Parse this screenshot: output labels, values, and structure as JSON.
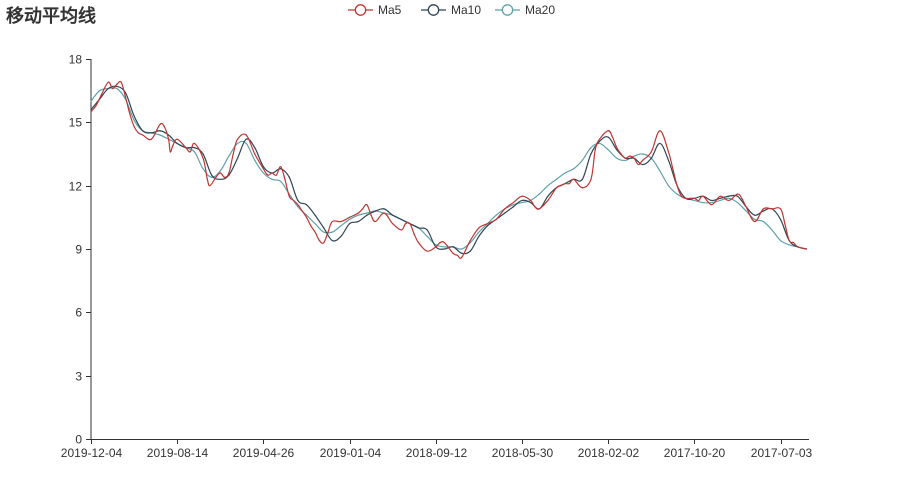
{
  "chart_title": "移动平均线",
  "chart_data": {
    "type": "line",
    "title": "移动平均线",
    "xlabel": "",
    "ylabel": "",
    "ylim": [
      0,
      18
    ],
    "y_ticks": [
      0,
      3,
      6,
      9,
      12,
      15,
      18
    ],
    "x_tick_labels": [
      "2019-12-04",
      "2019-08-14",
      "2019-04-26",
      "2019-01-04",
      "2018-09-12",
      "2018-05-30",
      "2018-02-02",
      "2017-10-20",
      "2017-07-03"
    ],
    "x_tick_positions": [
      0,
      1,
      2,
      3,
      4,
      5,
      6,
      7,
      8
    ],
    "x_range": [
      0,
      8.33
    ],
    "legend_position": "top-center",
    "grid": false,
    "series": [
      {
        "name": "Ma5",
        "color": "#c23531",
        "x": [
          0,
          0.06,
          0.12,
          0.2,
          0.25,
          0.3,
          0.35,
          0.4,
          0.45,
          0.5,
          0.55,
          0.6,
          0.7,
          0.8,
          0.85,
          0.9,
          0.92,
          0.95,
          1.0,
          1.1,
          1.15,
          1.2,
          1.3,
          1.35,
          1.38,
          1.45,
          1.5,
          1.55,
          1.6,
          1.65,
          1.7,
          1.8,
          1.9,
          2.0,
          2.05,
          2.1,
          2.15,
          2.2,
          2.25,
          2.3,
          2.35,
          2.4,
          2.45,
          2.5,
          2.55,
          2.6,
          2.65,
          2.7,
          2.75,
          2.8,
          2.9,
          3.0,
          3.1,
          3.15,
          3.2,
          3.25,
          3.3,
          3.4,
          3.5,
          3.6,
          3.65,
          3.7,
          3.75,
          3.8,
          3.9,
          4.0,
          4.05,
          4.1,
          4.2,
          4.25,
          4.3,
          4.4,
          4.5,
          4.6,
          4.7,
          4.8,
          4.9,
          5.0,
          5.1,
          5.15,
          5.2,
          5.3,
          5.4,
          5.45,
          5.5,
          5.55,
          5.6,
          5.7,
          5.8,
          5.85,
          5.9,
          6.0,
          6.05,
          6.1,
          6.15,
          6.2,
          6.25,
          6.3,
          6.35,
          6.4,
          6.5,
          6.6,
          6.7,
          6.75,
          6.8,
          6.85,
          6.9,
          6.95,
          7.0,
          7.05,
          7.1,
          7.2,
          7.3,
          7.4,
          7.5,
          7.55,
          7.6,
          7.7,
          7.8,
          7.9,
          8.0,
          8.05,
          8.1,
          8.15,
          8.2,
          8.3
        ],
        "y": [
          15.5,
          15.8,
          16.3,
          16.9,
          16.6,
          16.8,
          16.9,
          16.2,
          15.4,
          14.8,
          14.5,
          14.4,
          14.2,
          14.9,
          14.8,
          14.2,
          13.6,
          13.9,
          14.2,
          13.8,
          13.6,
          14.0,
          13.3,
          12.3,
          12.0,
          12.4,
          12.6,
          12.4,
          12.6,
          13.5,
          14.2,
          14.4,
          13.5,
          12.8,
          12.5,
          12.6,
          12.5,
          12.9,
          12.3,
          11.5,
          11.3,
          11.1,
          10.8,
          10.5,
          10.1,
          9.8,
          9.4,
          9.3,
          9.8,
          10.3,
          10.3,
          10.5,
          10.7,
          10.9,
          11.1,
          10.6,
          10.3,
          10.7,
          10.2,
          9.9,
          10.2,
          10.2,
          9.7,
          9.3,
          8.9,
          9.1,
          9.3,
          9.3,
          8.8,
          8.7,
          8.6,
          9.4,
          10.0,
          10.2,
          10.4,
          10.9,
          11.2,
          11.5,
          11.3,
          11.0,
          10.9,
          11.3,
          11.9,
          12.0,
          12.1,
          12.1,
          12.3,
          11.9,
          12.3,
          13.7,
          14.2,
          14.6,
          14.3,
          13.8,
          13.5,
          13.3,
          13.4,
          13.3,
          13.0,
          13.2,
          13.6,
          14.6,
          13.6,
          12.8,
          12.0,
          11.5,
          11.4,
          11.4,
          11.4,
          11.3,
          11.5,
          11.1,
          11.5,
          11.3,
          11.6,
          11.4,
          11.0,
          10.3,
          10.9,
          10.9,
          10.9,
          10.2,
          9.4,
          9.3,
          9.1,
          9.0
        ]
      },
      {
        "name": "Ma10",
        "color": "#2f4554",
        "x": [
          0,
          0.1,
          0.2,
          0.3,
          0.4,
          0.5,
          0.6,
          0.7,
          0.8,
          0.9,
          1.0,
          1.1,
          1.2,
          1.3,
          1.4,
          1.5,
          1.6,
          1.7,
          1.8,
          1.9,
          2.0,
          2.1,
          2.2,
          2.3,
          2.4,
          2.5,
          2.6,
          2.7,
          2.8,
          2.9,
          3.0,
          3.1,
          3.2,
          3.3,
          3.4,
          3.5,
          3.6,
          3.7,
          3.8,
          3.9,
          4.0,
          4.1,
          4.2,
          4.3,
          4.4,
          4.5,
          4.6,
          4.7,
          4.8,
          4.9,
          5.0,
          5.1,
          5.2,
          5.3,
          5.4,
          5.5,
          5.6,
          5.7,
          5.8,
          5.9,
          6.0,
          6.1,
          6.2,
          6.3,
          6.4,
          6.5,
          6.6,
          6.7,
          6.8,
          6.9,
          7.0,
          7.1,
          7.2,
          7.3,
          7.4,
          7.5,
          7.6,
          7.7,
          7.8,
          7.9,
          8.0,
          8.1,
          8.2,
          8.3
        ],
        "y": [
          15.6,
          16.1,
          16.6,
          16.7,
          16.4,
          15.3,
          14.6,
          14.5,
          14.6,
          14.4,
          14.0,
          13.8,
          13.8,
          13.5,
          12.5,
          12.3,
          12.5,
          13.3,
          14.2,
          13.8,
          12.9,
          12.6,
          12.8,
          12.4,
          11.3,
          11.1,
          10.6,
          10.0,
          9.4,
          9.6,
          10.2,
          10.3,
          10.6,
          10.8,
          10.9,
          10.6,
          10.4,
          10.2,
          10.0,
          9.9,
          9.1,
          9.0,
          9.1,
          8.8,
          8.9,
          9.6,
          10.1,
          10.4,
          10.7,
          11.0,
          11.3,
          11.2,
          10.9,
          11.5,
          11.9,
          12.1,
          12.3,
          12.3,
          13.5,
          14.1,
          14.3,
          13.7,
          13.3,
          13.3,
          13.0,
          13.3,
          14.0,
          13.2,
          12.0,
          11.4,
          11.4,
          11.5,
          11.3,
          11.4,
          11.5,
          11.5,
          11.0,
          10.6,
          10.8,
          10.9,
          10.4,
          9.4,
          9.1,
          9.0
        ]
      },
      {
        "name": "Ma20",
        "color": "#61a0a8",
        "x": [
          0,
          0.1,
          0.2,
          0.3,
          0.4,
          0.5,
          0.6,
          0.7,
          0.8,
          0.9,
          1.0,
          1.1,
          1.2,
          1.3,
          1.4,
          1.5,
          1.6,
          1.7,
          1.8,
          1.9,
          2.0,
          2.1,
          2.2,
          2.3,
          2.4,
          2.5,
          2.6,
          2.7,
          2.8,
          2.9,
          3.0,
          3.1,
          3.2,
          3.3,
          3.4,
          3.5,
          3.6,
          3.7,
          3.8,
          3.9,
          4.0,
          4.1,
          4.2,
          4.3,
          4.4,
          4.5,
          4.6,
          4.7,
          4.8,
          4.9,
          5.0,
          5.1,
          5.2,
          5.3,
          5.4,
          5.5,
          5.6,
          5.7,
          5.8,
          5.9,
          6.0,
          6.1,
          6.2,
          6.3,
          6.4,
          6.5,
          6.6,
          6.7,
          6.8,
          6.9,
          7.0,
          7.1,
          7.2,
          7.3,
          7.4,
          7.5,
          7.6,
          7.7,
          7.8,
          7.9,
          8.0,
          8.1,
          8.2,
          8.3
        ],
        "y": [
          16.0,
          16.5,
          16.6,
          16.6,
          16.1,
          15.1,
          14.6,
          14.5,
          14.4,
          14.2,
          14.0,
          13.8,
          13.6,
          12.8,
          12.4,
          12.7,
          13.4,
          14.0,
          14.0,
          13.2,
          12.6,
          12.3,
          12.2,
          11.6,
          11.0,
          10.6,
          10.2,
          9.8,
          9.8,
          10.1,
          10.4,
          10.6,
          10.7,
          10.8,
          10.7,
          10.6,
          10.4,
          10.2,
          10.0,
          9.6,
          9.2,
          9.1,
          9.1,
          9.0,
          9.3,
          9.8,
          10.2,
          10.6,
          10.9,
          11.1,
          11.2,
          11.3,
          11.6,
          12.0,
          12.3,
          12.6,
          12.8,
          13.2,
          13.8,
          14.0,
          13.7,
          13.3,
          13.2,
          13.4,
          13.5,
          13.3,
          12.7,
          12.0,
          11.6,
          11.4,
          11.3,
          11.2,
          11.2,
          11.3,
          11.4,
          11.2,
          10.8,
          10.4,
          10.3,
          9.9,
          9.4,
          9.2,
          9.1,
          9.0
        ]
      }
    ]
  }
}
